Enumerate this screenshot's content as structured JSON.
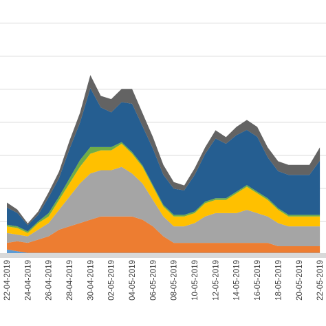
{
  "chart_data": {
    "type": "stacked-area",
    "categories": [
      "22-04-2019",
      null,
      "24-04-2019",
      null,
      "26-04-2019",
      null,
      "28-04-2019",
      null,
      "30-04-2019",
      null,
      "02-05-2019",
      null,
      "04-05-2019",
      null,
      "06-05-2019",
      null,
      "08-05-2019",
      null,
      "10-05-2019",
      null,
      "12-05-2019",
      null,
      "14-05-2019",
      null,
      "16-05-2019",
      null,
      "18-05-2019",
      null,
      "20-05-2019",
      null,
      "22-05-2019"
    ],
    "series": [
      {
        "color": "#5b9bd5",
        "values": [
          0.15,
          0.1,
          0.05,
          0.05,
          0.05,
          0.05,
          0.05,
          0.05,
          0.05,
          0.05,
          0.05,
          0.05,
          0.05,
          0.05,
          0.05,
          0.05,
          0.05,
          0.05,
          0.05,
          0.05,
          0.05,
          0.05,
          0.05,
          0.05,
          0.05,
          0.05,
          0.05,
          0.05,
          0.05,
          0.05,
          0.05
        ]
      },
      {
        "color": "#ed7d31",
        "values": [
          0.2,
          0.3,
          0.3,
          0.4,
          0.5,
          0.7,
          0.8,
          0.9,
          1.0,
          1.1,
          1.1,
          1.1,
          1.1,
          1.0,
          0.8,
          0.5,
          0.3,
          0.3,
          0.3,
          0.3,
          0.3,
          0.3,
          0.3,
          0.3,
          0.3,
          0.3,
          0.2,
          0.2,
          0.2,
          0.2,
          0.2
        ]
      },
      {
        "color": "#a5a5a5",
        "values": [
          0.3,
          0.2,
          0.2,
          0.3,
          0.4,
          0.6,
          0.9,
          1.2,
          1.4,
          1.4,
          1.4,
          1.5,
          1.3,
          1.1,
          0.8,
          0.6,
          0.5,
          0.5,
          0.6,
          0.8,
          0.9,
          0.9,
          0.9,
          1.0,
          0.9,
          0.8,
          0.7,
          0.6,
          0.6,
          0.6,
          0.6
        ]
      },
      {
        "color": "#ffc000",
        "values": [
          0.2,
          0.2,
          0.1,
          0.2,
          0.2,
          0.3,
          0.4,
          0.5,
          0.6,
          0.6,
          0.6,
          0.7,
          0.6,
          0.5,
          0.4,
          0.3,
          0.3,
          0.3,
          0.3,
          0.4,
          0.4,
          0.4,
          0.6,
          0.7,
          0.6,
          0.5,
          0.4,
          0.3,
          0.3,
          0.3,
          0.3
        ]
      },
      {
        "color": "#70ad47",
        "values": [
          0.05,
          0.05,
          0.05,
          0.05,
          0.1,
          0.1,
          0.15,
          0.2,
          0.2,
          0.1,
          0.1,
          0.05,
          0.05,
          0.05,
          0.05,
          0.05,
          0.05,
          0.05,
          0.05,
          0.05,
          0.05,
          0.05,
          0.05,
          0.05,
          0.05,
          0.05,
          0.05,
          0.05,
          0.05,
          0.05,
          0.05
        ]
      },
      {
        "color": "#255e91",
        "values": [
          0.52,
          0.41,
          0.19,
          0.2,
          0.48,
          0.56,
          0.89,
          1.13,
          1.78,
          1.2,
          1.05,
          1.21,
          1.46,
          1.18,
          1.1,
          0.91,
          0.79,
          0.74,
          1.11,
          1.44,
          1.81,
          1.65,
          1.71,
          1.67,
          1.66,
          1.24,
          1.12,
          1.21,
          1.21,
          1.21,
          1.64
        ]
      },
      {
        "color": "#636363",
        "values": [
          0.15,
          0.1,
          0.05,
          0.1,
          0.15,
          0.2,
          0.25,
          0.3,
          0.4,
          0.35,
          0.4,
          0.4,
          0.45,
          0.4,
          0.35,
          0.3,
          0.2,
          0.15,
          0.2,
          0.2,
          0.25,
          0.2,
          0.25,
          0.3,
          0.3,
          0.3,
          0.3,
          0.3,
          0.3,
          0.3,
          0.4
        ]
      }
    ],
    "ylim": [
      0,
      7.7
    ],
    "yticks": [
      1,
      2,
      3,
      4,
      5,
      6,
      7
    ],
    "grid": true
  }
}
